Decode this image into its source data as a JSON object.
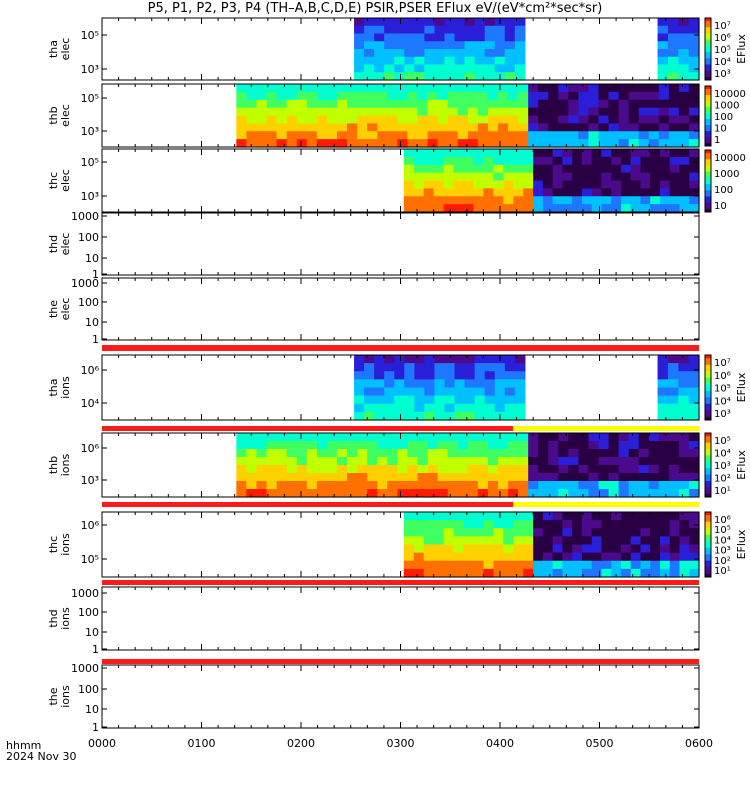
{
  "title": "P5, P1, P2, P3, P4 (TH–A,B,C,D,E) PSIR,PSER EFlux eV/(eV*cm²*sec*sr)",
  "time_axis": {
    "label_line1": "hhmm",
    "label_line2": "2024 Nov 30",
    "ticks": [
      "0000",
      "0100",
      "0200",
      "0300",
      "0400",
      "0500",
      "0600"
    ],
    "xlim_minutes": [
      0,
      360
    ]
  },
  "colors": {
    "status_red": "#ff1a1a",
    "status_yellow": "#ffff00",
    "fill_purple": "#3a0a4e"
  },
  "chart_data": [
    {
      "type": "heatmap",
      "panel": "tha_elec",
      "ylabel": [
        "tha",
        "elec"
      ],
      "y_tick_labels": [
        "10⁵",
        "10³"
      ],
      "data_segments_minutes": [
        [
          152,
          255
        ],
        [
          335,
          360
        ]
      ],
      "colorbar": {
        "label": "EFlux",
        "tick_labels": [
          "10⁷",
          "10⁶",
          "10⁵",
          "10⁴",
          "10³"
        ]
      }
    },
    {
      "type": "heatmap",
      "panel": "thb_elec",
      "ylabel": [
        "thb",
        "elec"
      ],
      "y_tick_labels": [
        "10⁵",
        "10³"
      ],
      "data_segments_minutes": [
        [
          81,
          257
        ],
        [
          257,
          360
        ]
      ],
      "colorbar": {
        "label": "",
        "tick_labels": [
          "10000",
          "1000",
          "100",
          "10",
          "1"
        ]
      }
    },
    {
      "type": "heatmap",
      "panel": "thc_elec",
      "ylabel": [
        "thc",
        "elec"
      ],
      "y_tick_labels": [
        "10⁵",
        "10³"
      ],
      "data_segments_minutes": [
        [
          182,
          260
        ],
        [
          260,
          360
        ]
      ],
      "colorbar": {
        "label": "",
        "tick_labels": [
          "10000",
          "1000",
          "100",
          "10"
        ]
      }
    },
    {
      "type": "line",
      "panel": "thd_elec",
      "ylabel": [
        "thd",
        "elec"
      ],
      "y_tick_labels": [
        "1000",
        "100",
        "10",
        "1"
      ],
      "data_segments_minutes": []
    },
    {
      "type": "line",
      "panel": "the_elec",
      "ylabel": [
        "the",
        "elec"
      ],
      "y_tick_labels": [
        "1000",
        "100",
        "10",
        "1"
      ],
      "data_segments_minutes": []
    },
    {
      "type": "heatmap",
      "panel": "tha_ions",
      "ylabel": [
        "tha",
        "ions"
      ],
      "y_tick_labels": [
        "10⁶",
        "10⁴"
      ],
      "data_segments_minutes": [
        [
          152,
          255
        ],
        [
          335,
          360
        ]
      ],
      "colorbar": {
        "label": "EFlux",
        "tick_labels": [
          "10⁷",
          "10⁶",
          "10⁵",
          "10⁴",
          "10³"
        ]
      }
    },
    {
      "type": "heatmap",
      "panel": "thb_ions",
      "ylabel": [
        "thb",
        "ions"
      ],
      "y_tick_labels": [
        "10⁶",
        "10³"
      ],
      "data_segments_minutes": [
        [
          81,
          257
        ],
        [
          257,
          360
        ]
      ],
      "colorbar": {
        "label": "EFlux",
        "tick_labels": [
          "10⁵",
          "10⁴",
          "10³",
          "10²",
          "10¹"
        ]
      }
    },
    {
      "type": "heatmap",
      "panel": "thc_ions",
      "ylabel": [
        "thc",
        "ions"
      ],
      "y_tick_labels": [
        "10⁶",
        "10⁵"
      ],
      "data_segments_minutes": [
        [
          182,
          260
        ],
        [
          260,
          360
        ]
      ],
      "colorbar": {
        "label": "EFlux",
        "tick_labels": [
          "10⁶",
          "10⁵",
          "10⁴",
          "10³",
          "10²",
          "10¹"
        ]
      }
    },
    {
      "type": "line",
      "panel": "thd_ions",
      "ylabel": [
        "thd",
        "ions"
      ],
      "y_tick_labels": [
        "1000",
        "100",
        "10",
        "1"
      ],
      "data_segments_minutes": []
    },
    {
      "type": "line",
      "panel": "the_ions",
      "ylabel": [
        "the",
        "ions"
      ],
      "y_tick_labels": [
        "1000",
        "100",
        "10",
        "1"
      ],
      "data_segments_minutes": []
    }
  ]
}
